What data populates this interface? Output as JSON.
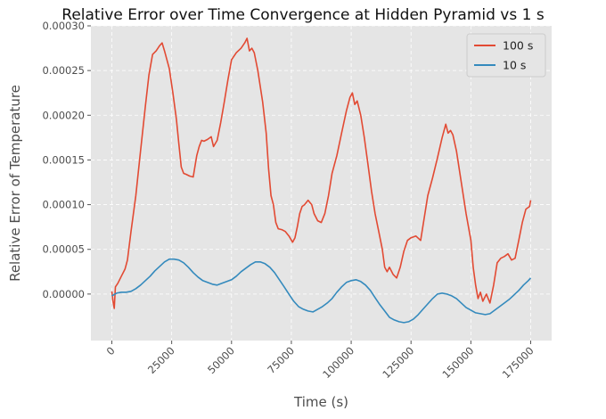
{
  "chart_data": {
    "type": "line",
    "title": "Relative Error over Time Convergence at Hidden Pyramid vs 1 s",
    "xlabel": "Time (s)",
    "ylabel": "Relative Error of Temperature",
    "xlim": [
      -8750,
      183750
    ],
    "ylim": [
      -5.2e-05,
      0.0003
    ],
    "x_ticks": [
      0,
      25000,
      50000,
      75000,
      100000,
      125000,
      150000,
      175000
    ],
    "x_tick_labels": [
      "0",
      "25000",
      "50000",
      "75000",
      "100000",
      "125000",
      "150000",
      "175000"
    ],
    "y_ticks": [
      0.0,
      5e-05,
      0.0001,
      0.00015,
      0.0002,
      0.00025,
      0.0003
    ],
    "y_tick_labels": [
      "0.00000",
      "0.00005",
      "0.00010",
      "0.00015",
      "0.00020",
      "0.00025",
      "0.00030"
    ],
    "grid": true,
    "legend_position": "top-right",
    "series": [
      {
        "name": "100 s",
        "color": "#e24a33",
        "x": [
          0,
          500,
          1000,
          1500,
          2500,
          4000,
          5500,
          6500,
          8000,
          10000,
          12000,
          14000,
          15500,
          17000,
          18500,
          20000,
          21000,
          22000,
          23000,
          24000,
          25500,
          27000,
          28000,
          29000,
          30000,
          31000,
          32500,
          34000,
          35500,
          36500,
          37500,
          38500,
          40000,
          41500,
          42500,
          44000,
          45500,
          47000,
          48500,
          50000,
          52000,
          54000,
          55500,
          56500,
          57500,
          58500,
          59500,
          61000,
          63000,
          64500,
          65500,
          66500,
          67500,
          68500,
          69500,
          71000,
          72500,
          74000,
          75500,
          76500,
          77500,
          78500,
          79500,
          80500,
          82000,
          83500,
          84500,
          86000,
          87500,
          89000,
          90500,
          92000,
          94000,
          96000,
          98000,
          99500,
          100500,
          101500,
          102500,
          104000,
          105500,
          107000,
          108500,
          110000,
          111500,
          113000,
          114000,
          115000,
          116000,
          117500,
          119000,
          120500,
          122000,
          123500,
          125000,
          127000,
          129000,
          130500,
          132000,
          134000,
          136000,
          138000,
          139500,
          140500,
          141500,
          142500,
          144000,
          146000,
          148000,
          150000,
          151000,
          152000,
          153000,
          154000,
          155000,
          156500,
          158000,
          159500,
          161000,
          162500,
          164000,
          165500,
          167000,
          168500,
          170000,
          171500,
          173000,
          174500,
          175000
        ],
        "values": [
          3e-06,
          -8e-06,
          -1.6e-05,
          8e-06,
          1.2e-05,
          2e-05,
          2.8e-05,
          3.8e-05,
          7e-05,
          0.00011,
          0.00016,
          0.00021,
          0.000245,
          0.000268,
          0.000272,
          0.000278,
          0.000281,
          0.000272,
          0.000262,
          0.000252,
          0.000225,
          0.000195,
          0.000168,
          0.000142,
          0.000135,
          0.000134,
          0.000132,
          0.000131,
          0.000155,
          0.000165,
          0.000172,
          0.000171,
          0.000173,
          0.000176,
          0.000165,
          0.000172,
          0.000192,
          0.000215,
          0.00024,
          0.000262,
          0.00027,
          0.000275,
          0.000281,
          0.000286,
          0.000272,
          0.000275,
          0.00027,
          0.00025,
          0.000215,
          0.00018,
          0.00014,
          0.00011,
          0.0001,
          8e-05,
          7.3e-05,
          7.2e-05,
          7e-05,
          6.5e-05,
          5.8e-05,
          6.3e-05,
          7.5e-05,
          9e-05,
          9.8e-05,
          0.0001,
          0.000105,
          0.0001,
          9e-05,
          8.2e-05,
          8e-05,
          9e-05,
          0.00011,
          0.000135,
          0.000155,
          0.00018,
          0.000205,
          0.00022,
          0.000225,
          0.000212,
          0.000216,
          0.0002,
          0.000175,
          0.000145,
          0.000115,
          9e-05,
          7e-05,
          5e-05,
          3e-05,
          2.5e-05,
          3e-05,
          2.2e-05,
          1.8e-05,
          3e-05,
          4.8e-05,
          6e-05,
          6.3e-05,
          6.5e-05,
          6e-05,
          8.5e-05,
          0.00011,
          0.00013,
          0.000152,
          0.000175,
          0.00019,
          0.00018,
          0.000183,
          0.000178,
          0.00016,
          0.000125,
          9e-05,
          6e-05,
          3e-05,
          1e-05,
          -5e-06,
          2e-06,
          -8e-06,
          0.0,
          -1e-05,
          1e-05,
          3.5e-05,
          4e-05,
          4.2e-05,
          4.5e-05,
          3.8e-05,
          4e-05,
          6e-05,
          8e-05,
          9.5e-05,
          9.8e-05,
          0.000105
        ]
      },
      {
        "name": "10 s",
        "color": "#348abd",
        "x": [
          0,
          2000,
          4000,
          6000,
          8000,
          10000,
          12000,
          14000,
          16000,
          18000,
          20000,
          22000,
          24000,
          26000,
          28000,
          30000,
          32000,
          34000,
          36000,
          38000,
          40000,
          42000,
          44000,
          46000,
          48000,
          50000,
          52000,
          54000,
          56000,
          58000,
          60000,
          62000,
          64000,
          66000,
          68000,
          70000,
          72000,
          74000,
          76000,
          78000,
          80000,
          82000,
          84000,
          86000,
          88000,
          90000,
          92000,
          94000,
          96000,
          98000,
          100000,
          102000,
          104000,
          106000,
          108000,
          110000,
          112000,
          114000,
          116000,
          118000,
          120000,
          122000,
          124000,
          126000,
          128000,
          130000,
          132000,
          134000,
          136000,
          138000,
          140000,
          142000,
          144000,
          146000,
          148000,
          150000,
          152000,
          154000,
          156000,
          158000,
          160000,
          162000,
          164000,
          166000,
          168000,
          170000,
          172000,
          174000,
          175000
        ],
        "values": [
          -2e-06,
          1e-06,
          2e-06,
          2e-06,
          3e-06,
          6e-06,
          1e-05,
          1.5e-05,
          2e-05,
          2.6e-05,
          3.1e-05,
          3.6e-05,
          3.9e-05,
          3.9e-05,
          3.8e-05,
          3.5e-05,
          3e-05,
          2.4e-05,
          1.9e-05,
          1.5e-05,
          1.3e-05,
          1.1e-05,
          1e-05,
          1.2e-05,
          1.4e-05,
          1.6e-05,
          2e-05,
          2.5e-05,
          2.9e-05,
          3.3e-05,
          3.6e-05,
          3.6e-05,
          3.4e-05,
          3e-05,
          2.4e-05,
          1.6e-05,
          8e-06,
          0.0,
          -8e-06,
          -1.4e-05,
          -1.7e-05,
          -1.9e-05,
          -2e-05,
          -1.7e-05,
          -1.4e-05,
          -1e-05,
          -5e-06,
          2e-06,
          8e-06,
          1.3e-05,
          1.5e-05,
          1.6e-05,
          1.4e-05,
          1e-05,
          4e-06,
          -4e-06,
          -1.2e-05,
          -1.9e-05,
          -2.6e-05,
          -2.9e-05,
          -3.1e-05,
          -3.2e-05,
          -3.1e-05,
          -2.8e-05,
          -2.3e-05,
          -1.7e-05,
          -1.1e-05,
          -5e-06,
          0.0,
          1e-06,
          0.0,
          -2e-06,
          -5e-06,
          -1e-05,
          -1.5e-05,
          -1.8e-05,
          -2.1e-05,
          -2.2e-05,
          -2.3e-05,
          -2.2e-05,
          -1.8e-05,
          -1.4e-05,
          -1e-05,
          -6e-06,
          -1e-06,
          4e-06,
          1e-05,
          1.5e-05,
          1.8e-05
        ]
      }
    ]
  }
}
